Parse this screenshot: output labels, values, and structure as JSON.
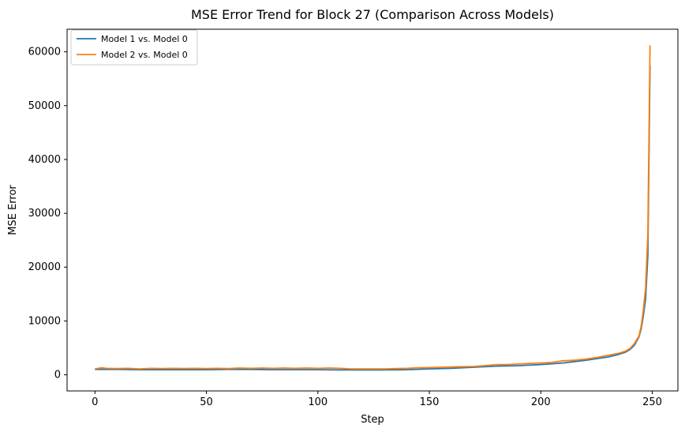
{
  "chart_data": {
    "type": "line",
    "title": "MSE Error Trend for Block 27 (Comparison Across Models)",
    "xlabel": "Step",
    "ylabel": "MSE Error",
    "xlim": [
      -12.5,
      261.5
    ],
    "ylim": [
      -3000,
      64200
    ],
    "xticks": [
      0,
      50,
      100,
      150,
      200,
      250
    ],
    "yticks": [
      0,
      10000,
      20000,
      30000,
      40000,
      50000,
      60000
    ],
    "legend_position": "top-left",
    "grid": false,
    "series": [
      {
        "name": "Model 1 vs. Model 0",
        "color": "#1f77b4",
        "x": [
          0,
          10,
          20,
          30,
          40,
          50,
          60,
          70,
          80,
          90,
          100,
          110,
          120,
          130,
          140,
          150,
          160,
          170,
          180,
          190,
          200,
          210,
          220,
          230,
          235,
          238,
          240,
          242,
          244,
          245,
          246,
          247,
          248,
          249
        ],
        "y": [
          1000,
          1000,
          950,
          950,
          950,
          950,
          1000,
          1000,
          950,
          950,
          950,
          900,
          900,
          900,
          950,
          1100,
          1200,
          1400,
          1600,
          1700,
          1900,
          2200,
          2700,
          3300,
          3800,
          4200,
          4700,
          5500,
          7000,
          8500,
          11000,
          14000,
          22000,
          57500
        ]
      },
      {
        "name": "Model 2 vs. Model 0",
        "color": "#ff7f0e",
        "x": [
          0,
          3,
          5,
          10,
          15,
          20,
          25,
          30,
          35,
          40,
          45,
          50,
          55,
          60,
          65,
          70,
          75,
          80,
          85,
          90,
          95,
          100,
          105,
          110,
          115,
          120,
          125,
          130,
          135,
          140,
          145,
          150,
          155,
          160,
          165,
          170,
          175,
          180,
          185,
          190,
          195,
          200,
          205,
          210,
          215,
          220,
          225,
          230,
          235,
          238,
          240,
          242,
          244,
          245,
          246,
          247,
          248,
          249
        ],
        "y": [
          1100,
          1300,
          1200,
          1150,
          1200,
          1100,
          1200,
          1150,
          1200,
          1150,
          1200,
          1150,
          1200,
          1150,
          1250,
          1200,
          1250,
          1200,
          1250,
          1200,
          1250,
          1200,
          1250,
          1200,
          1100,
          1100,
          1100,
          1100,
          1150,
          1200,
          1300,
          1350,
          1400,
          1450,
          1500,
          1550,
          1700,
          1900,
          1900,
          2000,
          2100,
          2200,
          2300,
          2600,
          2700,
          2900,
          3200,
          3600,
          4000,
          4400,
          4900,
          5800,
          7200,
          9000,
          12000,
          16000,
          26000,
          61200
        ]
      }
    ]
  }
}
